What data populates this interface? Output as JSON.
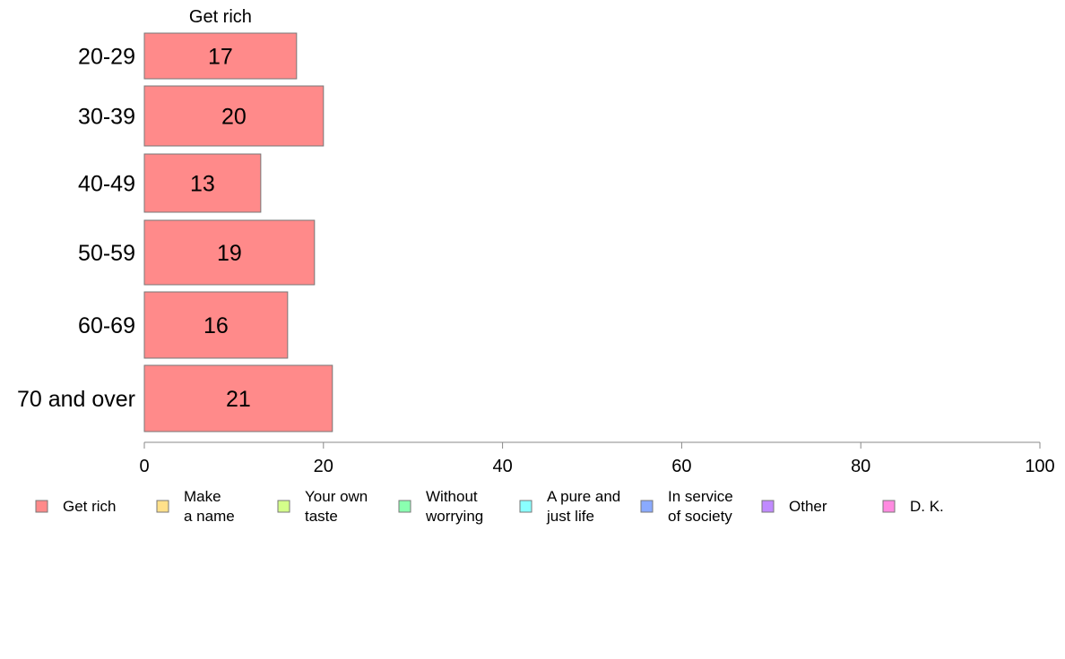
{
  "chart_data": {
    "type": "bar",
    "orientation": "horizontal",
    "stacked": true,
    "categories": [
      "20-29",
      "30-39",
      "40-49",
      "50-59",
      "60-69",
      "70 and over"
    ],
    "series": [
      {
        "name": "Get rich",
        "values": [
          17,
          20,
          13,
          19,
          16,
          21
        ],
        "color": "#ff8a8a"
      }
    ],
    "series_title": "Get rich",
    "xlim": [
      0,
      100
    ],
    "xticks": [
      "0",
      "20",
      "40",
      "60",
      "80",
      "100"
    ],
    "xlabel": "",
    "ylabel": "",
    "grid": false,
    "legend_position": "bottom",
    "legend": [
      {
        "lines": [
          "Get rich"
        ],
        "color": "#ff8a8a"
      },
      {
        "lines": [
          "Make",
          "a name"
        ],
        "color": "#ffe08a"
      },
      {
        "lines": [
          "Your own",
          "taste"
        ],
        "color": "#d4ff8a"
      },
      {
        "lines": [
          "Without",
          "worrying"
        ],
        "color": "#8affb0"
      },
      {
        "lines": [
          "A pure and",
          "just life"
        ],
        "color": "#8affff"
      },
      {
        "lines": [
          "In service",
          "of society"
        ],
        "color": "#8aaaff"
      },
      {
        "lines": [
          "Other"
        ],
        "color": "#c08aff"
      },
      {
        "lines": [
          "D. K."
        ],
        "color": "#ff8ae0"
      }
    ]
  }
}
